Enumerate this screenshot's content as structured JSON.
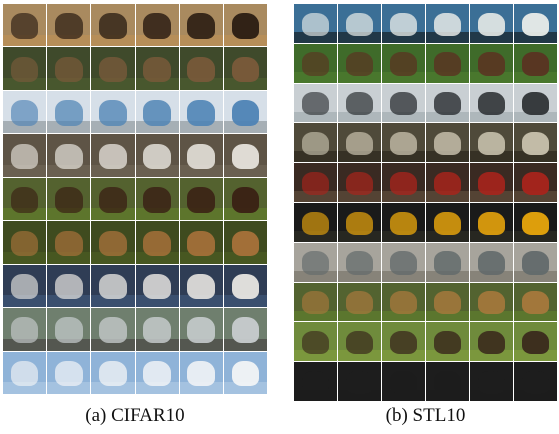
{
  "captions": {
    "cifar": "(a) CIFAR10",
    "stl": "(b) STL10"
  },
  "cifar_rows": [
    {
      "bg": "#a98a5f",
      "subject": "#2a1c12",
      "ground": "#b98f57"
    },
    {
      "bg": "#3f4a2b",
      "subject": "#7a5a3a",
      "ground": "#4b5a2f"
    },
    {
      "bg": "#d6dfe8",
      "subject": "#4e83b5",
      "ground": "#9aa3a8"
    },
    {
      "bg": "#5e5446",
      "subject": "#e6e3dc",
      "ground": "#6d6354"
    },
    {
      "bg": "#54622f",
      "subject": "#3a2114",
      "ground": "#5f7a2c"
    },
    {
      "bg": "#3f4b1f",
      "subject": "#a8713a",
      "ground": "#4a5a22"
    },
    {
      "bg": "#2f3d55",
      "subject": "#e8e6e2",
      "ground": "#3d5474"
    },
    {
      "bg": "#6f7f6e",
      "subject": "#c7ccce",
      "ground": "#4d4e48"
    },
    {
      "bg": "#8fb3d8",
      "subject": "#f2f4f6",
      "ground": "#a9c6e2"
    }
  ],
  "stl_rows": [
    {
      "bg": "#3b6f96",
      "subject": "#e9ece9",
      "ground": "#1b2a35"
    },
    {
      "bg": "#3f6b2a",
      "subject": "#5a3422",
      "ground": "#4c7a2e"
    },
    {
      "bg": "#c9cfd3",
      "subject": "#2f3336",
      "ground": "#a8b0b5"
    },
    {
      "bg": "#4f4a3a",
      "subject": "#c8c1ad",
      "ground": "#2f2a20"
    },
    {
      "bg": "#3a2a22",
      "subject": "#a8241c",
      "ground": "#5b4a3a"
    },
    {
      "bg": "#1a1a1a",
      "subject": "#e8a50c",
      "ground": "#2b2a23"
    },
    {
      "bg": "#a7a49c",
      "subject": "#626a6b",
      "ground": "#7f7b70"
    },
    {
      "bg": "#536330",
      "subject": "#a7783c",
      "ground": "#5e7a2e"
    },
    {
      "bg": "#6f8b3c",
      "subject": "#3a2a1c",
      "ground": "#7e9a3d"
    },
    {
      "bg": "#1d1d1d",
      "subject": "#1d1d1d",
      "ground": "#1d1d1d"
    }
  ]
}
